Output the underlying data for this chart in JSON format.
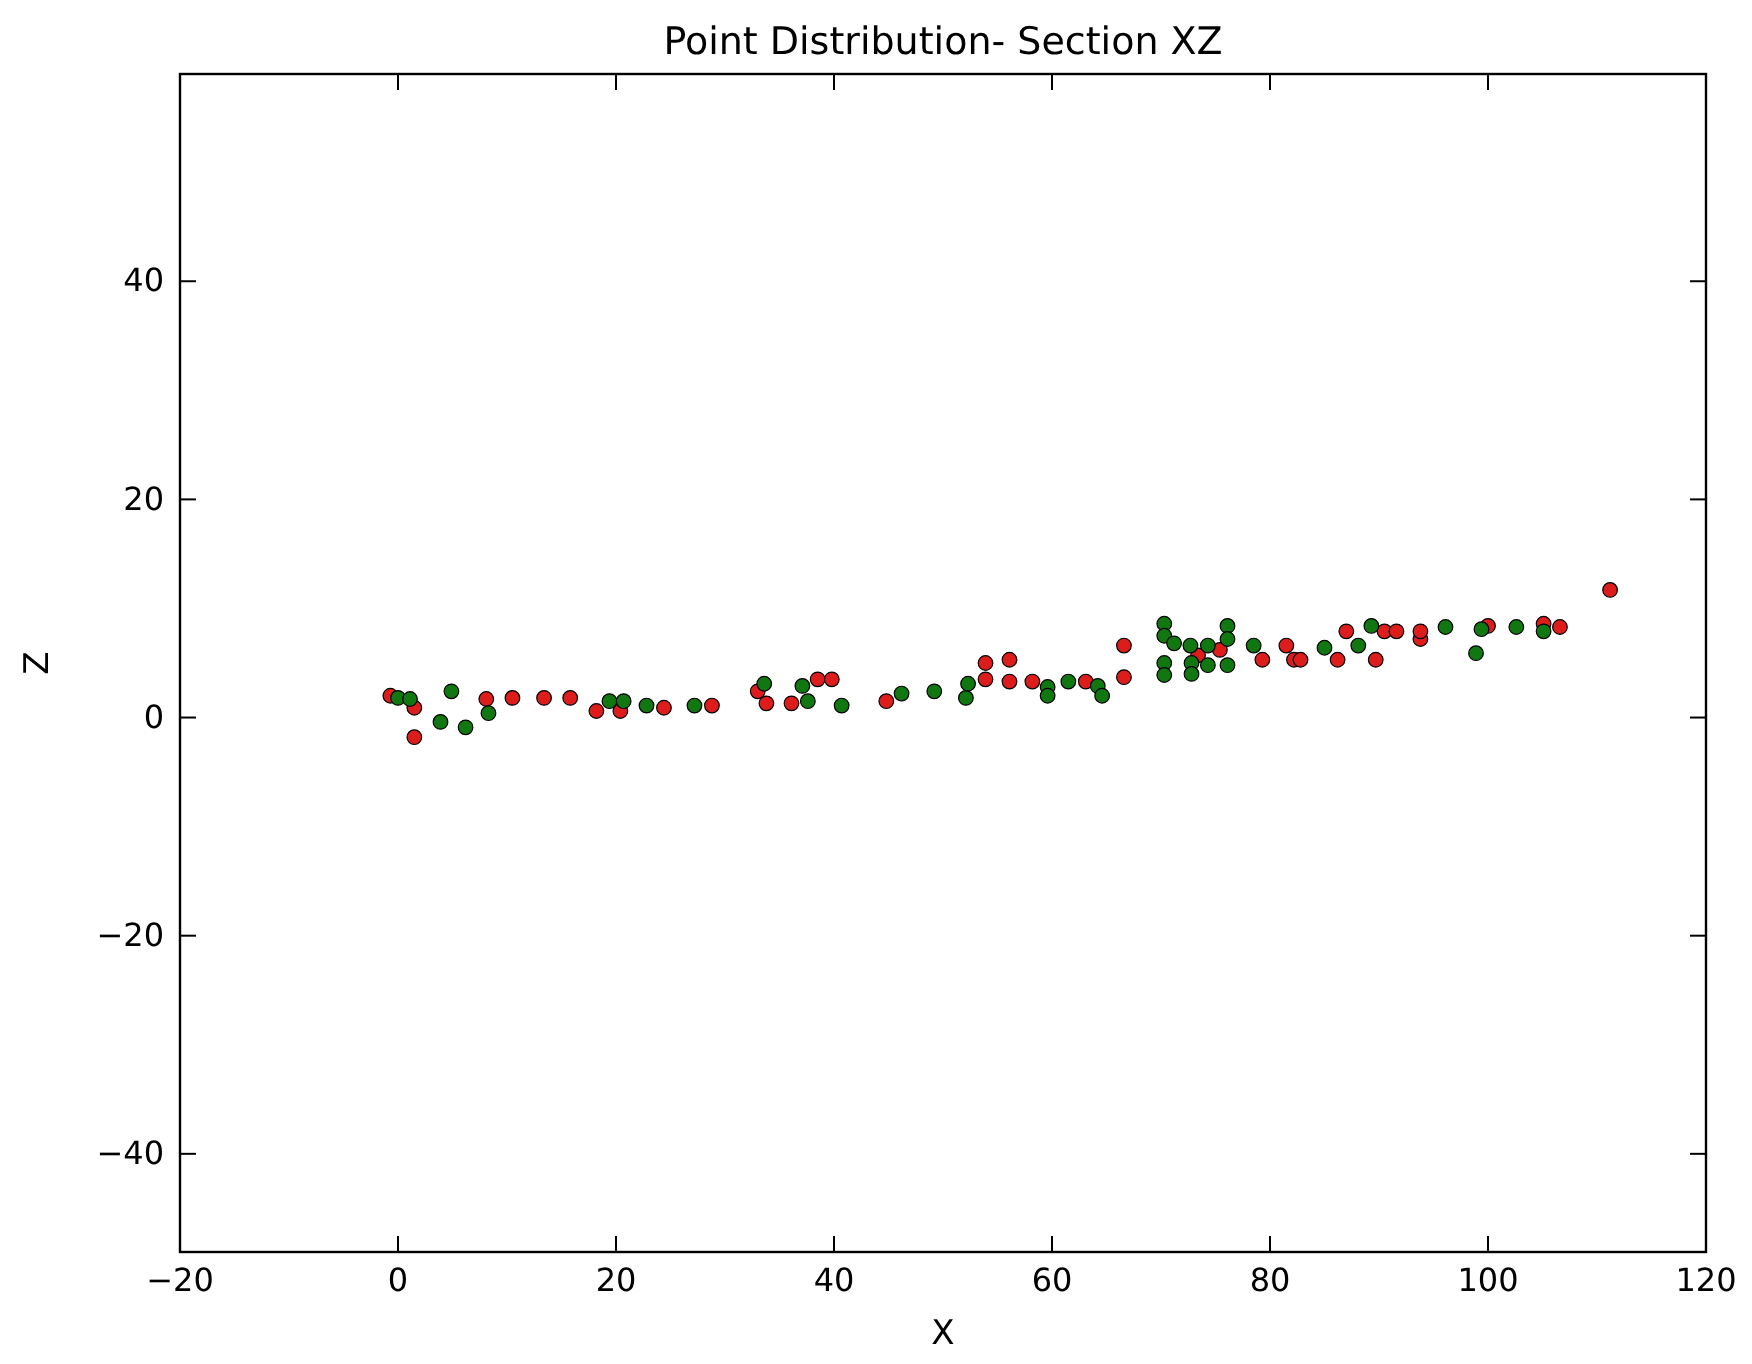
{
  "chart_data": {
    "type": "scatter",
    "title": "Point Distribution- Section XZ",
    "xlabel": "X",
    "ylabel": "Z",
    "xlim": [
      -20,
      120
    ],
    "ylim": [
      -49,
      59
    ],
    "xticks": [
      -20,
      0,
      20,
      40,
      60,
      80,
      100,
      120
    ],
    "yticks": [
      -40,
      -20,
      0,
      20,
      40
    ],
    "grid": false,
    "marker": "circle",
    "series": [
      {
        "color": "#dd1c1c",
        "x": [
          -0.7,
          1.5,
          1.5,
          8.1,
          10.5,
          13.4,
          15.8,
          18.2,
          20.4,
          24.4,
          28.8,
          33.0,
          33.8,
          36.1,
          38.5,
          39.8,
          44.8,
          53.9,
          53.9,
          56.1,
          56.1,
          58.2,
          63.1,
          66.6,
          66.6,
          73.4,
          75.4,
          79.3,
          81.5,
          82.2,
          82.8,
          86.2,
          87.0,
          89.7,
          90.5,
          91.6,
          93.8,
          93.8,
          100.0,
          105.1,
          106.6,
          111.2
        ],
        "values": [
          2.0,
          0.9,
          -1.8,
          1.7,
          1.8,
          1.8,
          1.8,
          0.6,
          0.6,
          0.9,
          1.1,
          2.4,
          1.3,
          1.3,
          3.5,
          3.5,
          1.5,
          5.0,
          3.5,
          5.3,
          3.3,
          3.3,
          3.3,
          6.6,
          3.7,
          5.7,
          6.2,
          5.3,
          6.6,
          5.3,
          5.3,
          5.3,
          7.9,
          5.3,
          7.9,
          7.9,
          7.2,
          7.9,
          8.4,
          8.6,
          8.3,
          11.7
        ]
      },
      {
        "color": "#117711",
        "x": [
          0,
          1.1,
          3.9,
          4.9,
          6.2,
          8.3,
          19.4,
          20.7,
          22.8,
          27.2,
          33.6,
          37.1,
          37.6,
          40.7,
          46.2,
          49.2,
          52.1,
          52.3,
          59.6,
          59.6,
          61.5,
          64.2,
          64.6,
          70.3,
          70.3,
          70.3,
          70.3,
          71.2,
          72.7,
          72.8,
          72.8,
          74.3,
          74.3,
          76.1,
          76.1,
          76.1,
          78.5,
          85.0,
          88.1,
          89.3,
          96.1,
          98.9,
          99.4,
          102.6,
          105.1
        ],
        "values": [
          1.8,
          1.7,
          -0.4,
          2.4,
          -0.9,
          0.4,
          1.5,
          1.5,
          1.1,
          1.1,
          3.1,
          2.9,
          1.5,
          1.1,
          2.2,
          2.4,
          1.8,
          3.1,
          2.8,
          2.0,
          3.3,
          2.9,
          2.0,
          8.6,
          7.5,
          5.0,
          3.9,
          6.8,
          6.6,
          5.0,
          4.0,
          6.6,
          4.8,
          8.4,
          7.2,
          4.8,
          6.6,
          6.4,
          6.6,
          8.4,
          8.3,
          5.9,
          8.1,
          8.3,
          7.9
        ]
      }
    ]
  }
}
